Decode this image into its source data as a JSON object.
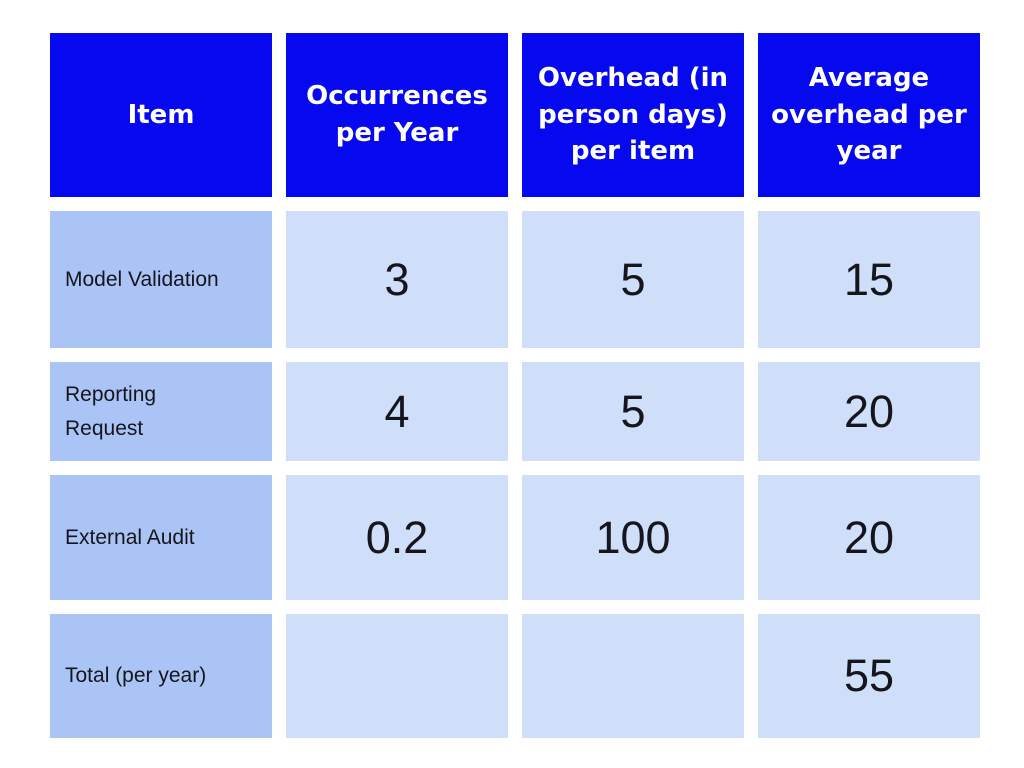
{
  "colors": {
    "header_background": "#0608f0",
    "header_text": "#ffffff",
    "item_column_background": "#abc4f6",
    "value_cell_background": "#cfdffa",
    "cell_text": "#15151c",
    "page_background": "#ffffff"
  },
  "chart_data": {
    "type": "table",
    "title": "",
    "columns": [
      "Item",
      "Occurrences per Year",
      "Overhead (in person days) per item",
      "Average overhead per year"
    ],
    "rows": [
      [
        "Model Validation",
        "3",
        "5",
        "15"
      ],
      [
        "Reporting Request",
        "4",
        "5",
        "20"
      ],
      [
        "External Audit",
        "0.2",
        "100",
        "20"
      ],
      [
        "Total (per year)",
        "",
        "",
        "55"
      ]
    ],
    "layout": {
      "header_row_highlighted": true,
      "first_column_highlighted": true,
      "gridlines": "white-gaps-between-cells"
    }
  }
}
